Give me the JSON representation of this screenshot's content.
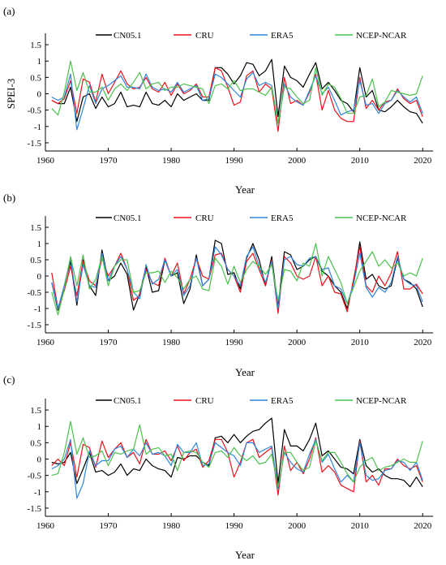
{
  "chart_data": [
    {
      "type": "line",
      "panel_label": "(a)",
      "ylabel": "SPEI-3",
      "xlabel": "Year",
      "xlim": [
        1960,
        2021
      ],
      "ylim": [
        -1.75,
        1.75
      ],
      "xticks": [
        1960,
        1970,
        1980,
        1990,
        2000,
        2010,
        2020
      ],
      "yticks": [
        -1.5,
        -1,
        -0.5,
        0,
        0.5,
        1,
        1.5
      ],
      "ytick_labels": [
        "-1.5",
        "-1",
        "-0.5",
        "0",
        "0.5",
        "1",
        "1.5"
      ],
      "grid": false,
      "legend": "top",
      "x": [
        1961,
        1962,
        1963,
        1964,
        1965,
        1966,
        1967,
        1968,
        1969,
        1970,
        1971,
        1972,
        1973,
        1974,
        1975,
        1976,
        1977,
        1978,
        1979,
        1980,
        1981,
        1982,
        1983,
        1984,
        1985,
        1986,
        1987,
        1988,
        1989,
        1990,
        1991,
        1992,
        1993,
        1994,
        1995,
        1996,
        1997,
        1998,
        1999,
        2000,
        2001,
        2002,
        2003,
        2004,
        2005,
        2006,
        2007,
        2008,
        2009,
        2010,
        2011,
        2012,
        2013,
        2014,
        2015,
        2016,
        2017,
        2018,
        2019,
        2020
      ],
      "series": [
        {
          "name": "CN05.1",
          "color": "#000000",
          "values": [
            -0.2,
            -0.3,
            -0.3,
            0.2,
            -0.85,
            -0.1,
            0.0,
            -0.45,
            -0.1,
            -0.4,
            -0.3,
            0.05,
            -0.4,
            -0.35,
            -0.4,
            0.05,
            -0.3,
            -0.35,
            -0.2,
            -0.4,
            0.0,
            -0.2,
            -0.1,
            0.0,
            -0.2,
            -0.2,
            0.8,
            0.8,
            0.6,
            0.3,
            0.55,
            0.95,
            0.9,
            0.55,
            0.7,
            1.05,
            -0.7,
            0.85,
            0.5,
            0.4,
            0.2,
            0.6,
            0.95,
            0.15,
            0.35,
            0.1,
            -0.2,
            -0.3,
            -0.55,
            0.8,
            -0.1,
            0.1,
            -0.5,
            -0.55,
            -0.4,
            -0.2,
            -0.4,
            -0.55,
            -0.6,
            -0.9
          ]
        },
        {
          "name": "CRU",
          "color": "#e8141c",
          "values": [
            -0.2,
            -0.3,
            -0.15,
            0.4,
            -0.6,
            0.45,
            0.35,
            -0.25,
            0.6,
            0.0,
            0.35,
            0.7,
            0.3,
            0.15,
            0.2,
            0.5,
            0.15,
            0.05,
            0.35,
            -0.05,
            0.3,
            0.0,
            0.1,
            0.3,
            -0.1,
            -0.1,
            0.8,
            0.7,
            0.2,
            -0.35,
            -0.25,
            0.55,
            0.7,
            0.05,
            0.3,
            0.15,
            -1.15,
            0.5,
            -0.3,
            -0.2,
            -0.35,
            0.05,
            0.6,
            -0.5,
            0.1,
            -0.5,
            -0.75,
            -0.85,
            -0.85,
            0.5,
            -0.45,
            -0.2,
            -0.5,
            -0.25,
            -0.2,
            0.15,
            -0.15,
            -0.3,
            -0.2,
            -0.7
          ]
        },
        {
          "name": "ERA5",
          "color": "#2f86de",
          "values": [
            -0.1,
            -0.2,
            -0.1,
            0.6,
            -1.1,
            -0.45,
            0.25,
            -0.3,
            0.15,
            0.25,
            0.4,
            0.55,
            0.2,
            0.2,
            0.15,
            0.6,
            0.2,
            0.1,
            0.15,
            0.05,
            0.35,
            0.05,
            0.15,
            0.25,
            -0.2,
            -0.15,
            0.6,
            0.5,
            0.3,
            0.1,
            -0.1,
            0.45,
            0.65,
            0.25,
            0.35,
            0.25,
            -0.9,
            0.3,
            -0.1,
            -0.25,
            -0.35,
            0.1,
            0.55,
            0.0,
            0.2,
            -0.2,
            -0.65,
            -0.55,
            -0.5,
            0.4,
            -0.35,
            -0.3,
            -0.6,
            -0.3,
            -0.2,
            0.1,
            -0.1,
            -0.25,
            -0.1,
            -0.6
          ]
        },
        {
          "name": "NCEP-NCAR",
          "color": "#4cc24c",
          "values": [
            -0.45,
            -0.65,
            0.05,
            1.0,
            0.1,
            0.65,
            0.05,
            0.05,
            0.2,
            -0.2,
            0.15,
            0.3,
            0.1,
            0.35,
            0.65,
            0.15,
            0.3,
            0.35,
            0.1,
            0.2,
            0.2,
            0.3,
            0.25,
            0.2,
            0.15,
            -0.3,
            0.25,
            0.3,
            0.15,
            0.4,
            0.1,
            0.15,
            0.15,
            0.05,
            -0.05,
            0.2,
            -0.9,
            0.2,
            0.15,
            -0.1,
            -0.3,
            -0.2,
            0.8,
            -0.05,
            0.3,
            0.2,
            -0.15,
            -0.6,
            -0.6,
            -0.1,
            -0.05,
            0.45,
            -0.4,
            -0.25,
            0.1,
            0.05,
            0.0,
            -0.05,
            0.0,
            0.55
          ]
        }
      ]
    },
    {
      "type": "line",
      "panel_label": "(b)",
      "ylabel": "",
      "xlabel": "Year",
      "xlim": [
        1960,
        2021
      ],
      "ylim": [
        -1.75,
        1.75
      ],
      "xticks": [
        1960,
        1970,
        1980,
        1990,
        2000,
        2010,
        2020
      ],
      "yticks": [
        -1.5,
        -1,
        -0.5,
        0,
        0.5,
        1,
        1.5
      ],
      "ytick_labels": [
        "-1.5",
        "-1",
        "-0.5",
        "0",
        "0.5",
        "1",
        "1.5"
      ],
      "grid": false,
      "legend": "top",
      "x": [
        1961,
        1962,
        1963,
        1964,
        1965,
        1966,
        1967,
        1968,
        1969,
        1970,
        1971,
        1972,
        1973,
        1974,
        1975,
        1976,
        1977,
        1978,
        1979,
        1980,
        1981,
        1982,
        1983,
        1984,
        1985,
        1986,
        1987,
        1988,
        1989,
        1990,
        1991,
        1992,
        1993,
        1994,
        1995,
        1996,
        1997,
        1998,
        1999,
        2000,
        2001,
        2002,
        2003,
        2004,
        2005,
        2006,
        2007,
        2008,
        2009,
        2010,
        2011,
        2012,
        2013,
        2014,
        2015,
        2016,
        2017,
        2018,
        2019,
        2020
      ],
      "series": [
        {
          "name": "CN05.1",
          "color": "#000000",
          "values": [
            -0.2,
            -1.05,
            -0.3,
            0.45,
            -0.9,
            0.5,
            -0.3,
            -0.6,
            0.8,
            -0.15,
            0.0,
            0.4,
            0.05,
            -1.05,
            -0.55,
            0.3,
            -0.5,
            -0.45,
            0.5,
            0.0,
            0.1,
            -0.85,
            -0.4,
            0.65,
            -0.3,
            -0.1,
            1.1,
            1.0,
            0.05,
            0.1,
            -0.4,
            0.55,
            1.0,
            0.5,
            -0.3,
            0.6,
            -0.95,
            0.75,
            0.65,
            0.2,
            0.3,
            0.5,
            0.6,
            0.15,
            0.0,
            -0.3,
            -0.5,
            -1.0,
            -0.2,
            1.05,
            -0.1,
            0.05,
            -0.3,
            -0.4,
            -0.3,
            0.55,
            -0.1,
            -0.2,
            -0.4,
            -0.95
          ]
        },
        {
          "name": "CRU",
          "color": "#e8141c",
          "values": [
            0.1,
            -1.0,
            -0.45,
            0.3,
            -0.6,
            0.45,
            -0.15,
            -0.3,
            0.55,
            0.0,
            0.3,
            0.7,
            0.2,
            -0.75,
            -0.6,
            0.2,
            -0.2,
            -0.3,
            0.55,
            0.0,
            0.4,
            -0.55,
            -0.1,
            0.55,
            0.0,
            -0.1,
            0.65,
            0.7,
            0.2,
            0.0,
            -0.5,
            0.45,
            0.7,
            0.2,
            -0.3,
            0.5,
            -1.15,
            0.6,
            0.4,
            0.0,
            -0.1,
            0.0,
            0.6,
            -0.3,
            0.0,
            -0.5,
            -0.55,
            -1.1,
            -0.1,
            0.9,
            -0.3,
            -0.5,
            0.0,
            -0.3,
            0.1,
            0.75,
            -0.4,
            -0.4,
            -0.25,
            -0.55
          ]
        },
        {
          "name": "ERA5",
          "color": "#2f86de",
          "values": [
            -0.2,
            -1.0,
            -0.3,
            0.55,
            -0.8,
            0.35,
            -0.3,
            -0.35,
            0.7,
            -0.15,
            0.3,
            0.6,
            0.2,
            -0.5,
            -0.7,
            0.35,
            -0.25,
            -0.1,
            0.5,
            0.0,
            0.2,
            -0.6,
            -0.3,
            0.55,
            -0.3,
            -0.1,
            0.9,
            0.65,
            0.2,
            0.0,
            -0.3,
            0.6,
            0.9,
            0.3,
            -0.2,
            0.45,
            -1.0,
            0.5,
            0.6,
            0.35,
            0.3,
            0.55,
            0.6,
            0.2,
            0.25,
            -0.3,
            -0.4,
            -0.85,
            -0.25,
            0.7,
            -0.35,
            -0.65,
            -0.35,
            -0.5,
            -0.2,
            0.6,
            -0.1,
            -0.25,
            -0.3,
            -0.8
          ]
        },
        {
          "name": "NCEP-NCAR",
          "color": "#4cc24c",
          "values": [
            -0.5,
            -1.2,
            -0.4,
            0.6,
            -0.3,
            0.65,
            -0.4,
            -0.1,
            0.6,
            -0.3,
            0.3,
            0.5,
            0.5,
            -0.5,
            -0.45,
            0.1,
            0.1,
            0.15,
            -0.2,
            0.15,
            -0.05,
            -0.4,
            -0.1,
            0.0,
            -0.4,
            -0.45,
            0.55,
            0.3,
            -0.25,
            0.3,
            -0.2,
            0.2,
            0.45,
            0.3,
            0.05,
            0.35,
            -0.75,
            0.2,
            0.15,
            -0.15,
            0.4,
            0.3,
            1.0,
            0.0,
            0.6,
            0.2,
            -0.2,
            -0.85,
            -0.35,
            0.15,
            0.45,
            0.75,
            0.3,
            0.5,
            0.25,
            0.4,
            0.0,
            0.1,
            0.0,
            0.55
          ]
        }
      ]
    },
    {
      "type": "line",
      "panel_label": "(c)",
      "ylabel": "",
      "xlabel": "Year",
      "xlim": [
        1960,
        2021
      ],
      "ylim": [
        -1.75,
        1.75
      ],
      "xticks": [
        1960,
        1970,
        1980,
        1990,
        2000,
        2010,
        2020
      ],
      "yticks": [
        -1.5,
        -1,
        -0.5,
        0,
        0.5,
        1,
        1.5
      ],
      "ytick_labels": [
        "-1.5",
        "-1",
        "-0.5",
        "0",
        "0.5",
        "1",
        "1.5"
      ],
      "grid": false,
      "legend": "top",
      "x": [
        1961,
        1962,
        1963,
        1964,
        1965,
        1966,
        1967,
        1968,
        1969,
        1970,
        1971,
        1972,
        1973,
        1974,
        1975,
        1976,
        1977,
        1978,
        1979,
        1980,
        1981,
        1982,
        1983,
        1984,
        1985,
        1986,
        1987,
        1988,
        1989,
        1990,
        1991,
        1992,
        1993,
        1994,
        1995,
        1996,
        1997,
        1998,
        1999,
        2000,
        2001,
        2002,
        2003,
        2004,
        2005,
        2006,
        2007,
        2008,
        2009,
        2010,
        2011,
        2012,
        2013,
        2014,
        2015,
        2016,
        2017,
        2018,
        2019,
        2020
      ],
      "series": [
        {
          "name": "CN05.1",
          "color": "#000000",
          "values": [
            -0.1,
            -0.15,
            -0.1,
            0.2,
            -0.75,
            -0.3,
            0.2,
            -0.4,
            -0.35,
            -0.5,
            -0.4,
            -0.15,
            -0.5,
            -0.3,
            -0.35,
            0.0,
            -0.2,
            -0.3,
            -0.35,
            -0.55,
            0.05,
            0.0,
            0.1,
            0.1,
            -0.1,
            -0.2,
            0.65,
            0.7,
            0.5,
            0.75,
            0.5,
            0.7,
            0.85,
            0.9,
            1.1,
            1.25,
            -0.75,
            0.9,
            0.4,
            0.4,
            0.25,
            0.6,
            1.1,
            0.1,
            0.25,
            0.0,
            -0.25,
            -0.3,
            -0.45,
            0.6,
            -0.2,
            -0.4,
            -0.3,
            -0.5,
            -0.6,
            -0.6,
            -0.65,
            -0.85,
            -0.55,
            -0.85
          ]
        },
        {
          "name": "CRU",
          "color": "#e8141c",
          "values": [
            -0.2,
            0.0,
            -0.2,
            0.5,
            -0.55,
            0.45,
            0.35,
            -0.25,
            0.55,
            0.05,
            0.3,
            0.5,
            0.05,
            0.2,
            -0.15,
            0.6,
            0.15,
            0.15,
            0.25,
            -0.05,
            0.4,
            -0.05,
            0.2,
            0.3,
            -0.25,
            -0.05,
            0.6,
            0.6,
            0.2,
            -0.55,
            -0.1,
            0.5,
            0.6,
            0.05,
            0.2,
            0.35,
            -1.1,
            0.4,
            -0.35,
            -0.1,
            -0.45,
            0.0,
            0.65,
            -0.4,
            -0.2,
            -0.4,
            -0.8,
            -0.9,
            -1.0,
            0.55,
            -0.7,
            -0.5,
            -0.8,
            -0.3,
            -0.3,
            0.0,
            -0.2,
            -0.3,
            -0.2,
            -0.7
          ]
        },
        {
          "name": "ERA5",
          "color": "#2f86de",
          "values": [
            -0.3,
            -0.2,
            0.0,
            0.6,
            -1.2,
            -0.75,
            0.25,
            -0.2,
            -0.05,
            -0.05,
            0.3,
            0.4,
            0.05,
            0.3,
            0.1,
            0.5,
            0.15,
            0.2,
            0.1,
            -0.2,
            0.45,
            0.2,
            0.2,
            0.5,
            -0.2,
            -0.15,
            0.5,
            0.35,
            0.2,
            0.1,
            -0.2,
            0.5,
            0.5,
            0.2,
            0.3,
            0.4,
            -0.9,
            0.2,
            -0.1,
            -0.3,
            -0.4,
            0.15,
            0.6,
            -0.1,
            0.15,
            -0.3,
            -0.7,
            -0.5,
            -0.7,
            0.5,
            -0.5,
            -0.65,
            -0.6,
            -0.35,
            -0.3,
            -0.05,
            -0.1,
            -0.35,
            -0.1,
            -0.65
          ]
        },
        {
          "name": "NCEP-NCAR",
          "color": "#4cc24c",
          "values": [
            -0.5,
            -0.45,
            0.2,
            1.15,
            0.15,
            0.65,
            0.05,
            0.1,
            0.25,
            -0.2,
            0.2,
            0.15,
            0.25,
            0.3,
            1.05,
            0.15,
            0.3,
            0.35,
            0.1,
            0.15,
            -0.35,
            0.2,
            0.25,
            0.2,
            -0.1,
            -0.25,
            0.2,
            0.25,
            0.05,
            0.35,
            0.1,
            -0.05,
            0.1,
            -0.15,
            -0.1,
            0.15,
            -0.85,
            0.2,
            0.2,
            -0.1,
            -0.35,
            -0.25,
            0.55,
            -0.05,
            0.2,
            0.2,
            -0.1,
            -0.45,
            -0.7,
            -0.25,
            -0.05,
            0.05,
            -0.35,
            -0.25,
            -0.2,
            -0.1,
            0.0,
            -0.1,
            -0.1,
            0.55
          ]
        }
      ]
    }
  ]
}
